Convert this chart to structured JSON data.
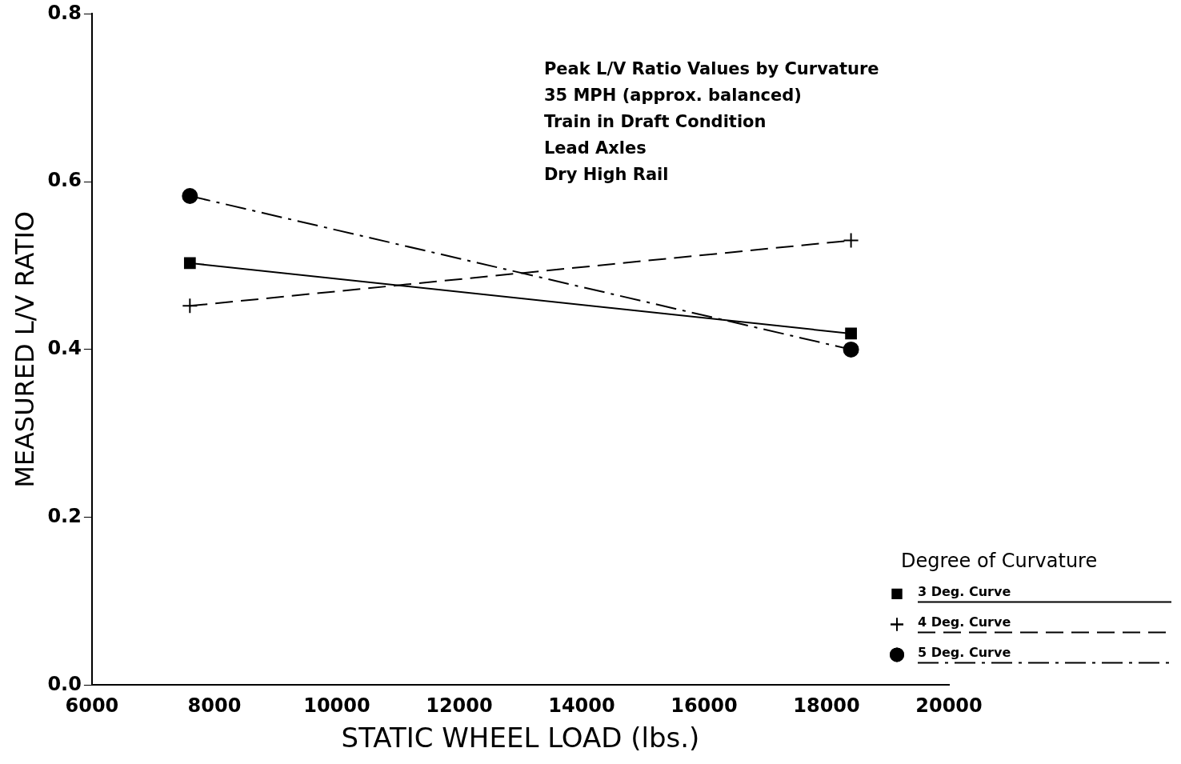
{
  "chart_data": {
    "type": "line",
    "xlabel": "STATIC WHEEL LOAD (lbs.)",
    "ylabel": "MEASURED L/V RATIO",
    "legend_title": "Degree of Curvature",
    "legend": "bottom right",
    "grid": false,
    "annotations": [
      "Peak L/V Ratio Values by Curvature",
      "35 MPH (approx. balanced)",
      "Train in Draft Condition",
      "Lead Axles",
      "Dry High Rail"
    ],
    "xlim": [
      6000,
      20000
    ],
    "xticks": [
      6000,
      8000,
      10000,
      12000,
      14000,
      16000,
      18000,
      20000
    ],
    "ylim": [
      0,
      0.8
    ],
    "yticks": [
      {
        "value": 0,
        "label": "0.0"
      },
      0.2,
      0.4,
      0.6,
      0.8
    ],
    "x": [
      7600,
      18400
    ],
    "series": [
      {
        "name": "3 Deg. Curve",
        "color": "#000000",
        "values": [
          0.503,
          0.419
        ],
        "marker": "square",
        "line_style": "solid"
      },
      {
        "name": "4 Deg. Curve",
        "color": "#000000",
        "values": [
          0.452,
          0.53
        ],
        "marker": "cross",
        "line_style": "dashed"
      },
      {
        "name": "5 Deg. Curve",
        "color": "#000000",
        "values": [
          0.583,
          0.4
        ],
        "marker": "circle",
        "line_style": "dashdot"
      }
    ]
  }
}
